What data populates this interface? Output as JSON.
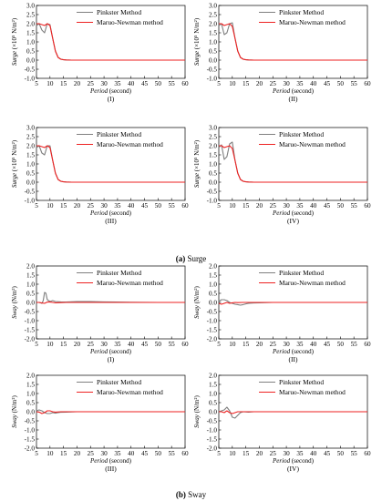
{
  "figure": {
    "caption_a_letter": "(a)",
    "caption_a_text": " Surge",
    "caption_b_letter": "(b)",
    "caption_b_text": " Sway",
    "colors": {
      "pinkster": "#7f7f7f",
      "maruo": "#ee2222"
    }
  },
  "chart_data": [
    {
      "type": "line",
      "group": "surge",
      "panel_label": "(I)",
      "xlabel_italic": "Period",
      "xlabel_unit": " (second)",
      "ylabel_italic": "Surge",
      "ylabel_unit": " (×10⁵ N/m²)",
      "xlim": [
        5,
        60
      ],
      "ylim": [
        -1.0,
        3.0
      ],
      "xticks": [
        5,
        10,
        15,
        20,
        25,
        30,
        35,
        40,
        45,
        50,
        55,
        60
      ],
      "yticks": [
        -1.0,
        -0.5,
        0.0,
        0.5,
        1.0,
        1.5,
        2.0,
        2.5,
        3.0
      ],
      "legend": "top-right",
      "series": [
        {
          "name": "Pinkster Method",
          "color": "#7f7f7f",
          "x": [
            5,
            6,
            7,
            8,
            9,
            10,
            11,
            12,
            13,
            14,
            15,
            16,
            18,
            20,
            30,
            40,
            50,
            60
          ],
          "y": [
            1.9,
            2.0,
            1.65,
            1.5,
            2.0,
            1.95,
            1.2,
            0.5,
            0.15,
            0.05,
            0.02,
            0.01,
            0,
            0,
            0,
            0,
            0,
            0
          ]
        },
        {
          "name": "Maruo-Newman method",
          "color": "#ee2222",
          "x": [
            5,
            6,
            7,
            8,
            9,
            10,
            11,
            12,
            13,
            14,
            15,
            16,
            18,
            20,
            30,
            40,
            50,
            60
          ],
          "y": [
            2.0,
            2.0,
            1.95,
            1.9,
            2.0,
            1.9,
            1.2,
            0.5,
            0.15,
            0.05,
            0.02,
            0.01,
            0,
            0,
            0,
            0,
            0,
            0
          ]
        }
      ]
    },
    {
      "type": "line",
      "group": "surge",
      "panel_label": "(II)",
      "xlabel_italic": "Period",
      "xlabel_unit": " (second)",
      "ylabel_italic": "Surge",
      "ylabel_unit": " (×10⁵ N/m²)",
      "xlim": [
        5,
        60
      ],
      "ylim": [
        -1.0,
        3.0
      ],
      "xticks": [
        5,
        10,
        15,
        20,
        25,
        30,
        35,
        40,
        45,
        50,
        55,
        60
      ],
      "yticks": [
        -1.0,
        -0.5,
        0.0,
        0.5,
        1.0,
        1.5,
        2.0,
        2.5,
        3.0
      ],
      "legend": "top-right",
      "series": [
        {
          "name": "Pinkster Method",
          "color": "#7f7f7f",
          "x": [
            5,
            6,
            7,
            8,
            9,
            10,
            11,
            12,
            13,
            14,
            15,
            16,
            18,
            20,
            30,
            40,
            50,
            60
          ],
          "y": [
            1.9,
            2.0,
            1.4,
            1.5,
            2.0,
            2.05,
            1.2,
            0.5,
            0.15,
            0.05,
            0.02,
            0.01,
            0,
            0,
            0,
            0,
            0,
            0
          ]
        },
        {
          "name": "Maruo-Newman method",
          "color": "#ee2222",
          "x": [
            5,
            6,
            7,
            8,
            9,
            10,
            11,
            12,
            13,
            14,
            15,
            16,
            18,
            20,
            30,
            40,
            50,
            60
          ],
          "y": [
            2.0,
            2.0,
            1.9,
            1.95,
            2.0,
            1.85,
            1.2,
            0.5,
            0.15,
            0.05,
            0.02,
            0.01,
            0,
            0,
            0,
            0,
            0,
            0
          ]
        }
      ]
    },
    {
      "type": "line",
      "group": "surge",
      "panel_label": "(III)",
      "xlabel_italic": "Period",
      "xlabel_unit": " (second)",
      "ylabel_italic": "Surge",
      "ylabel_unit": " (×10⁵ N/m²)",
      "xlim": [
        5,
        60
      ],
      "ylim": [
        -1.0,
        3.0
      ],
      "xticks": [
        5,
        10,
        15,
        20,
        25,
        30,
        35,
        40,
        45,
        50,
        55,
        60
      ],
      "yticks": [
        -1.0,
        -0.5,
        0.0,
        0.5,
        1.0,
        1.5,
        2.0,
        2.5,
        3.0
      ],
      "legend": "top-right",
      "series": [
        {
          "name": "Pinkster Method",
          "color": "#7f7f7f",
          "x": [
            5,
            6,
            7,
            8,
            9,
            10,
            11,
            12,
            13,
            14,
            15,
            16,
            18,
            20,
            30,
            40,
            50,
            60
          ],
          "y": [
            1.9,
            2.0,
            1.6,
            1.5,
            2.0,
            2.0,
            1.2,
            0.5,
            0.15,
            0.05,
            0.02,
            0.01,
            0,
            0,
            0,
            0,
            0,
            0
          ]
        },
        {
          "name": "Maruo-Newman method",
          "color": "#ee2222",
          "x": [
            5,
            6,
            7,
            8,
            9,
            10,
            11,
            12,
            13,
            14,
            15,
            16,
            18,
            20,
            30,
            40,
            50,
            60
          ],
          "y": [
            2.0,
            2.0,
            1.95,
            1.9,
            2.0,
            1.9,
            1.2,
            0.5,
            0.15,
            0.05,
            0.02,
            0.01,
            0,
            0,
            0,
            0,
            0,
            0
          ]
        }
      ]
    },
    {
      "type": "line",
      "group": "surge",
      "panel_label": "(IV)",
      "xlabel_italic": "Period",
      "xlabel_unit": " (second)",
      "ylabel_italic": "Surge",
      "ylabel_unit": " (×10⁵ N/m²)",
      "xlim": [
        5,
        60
      ],
      "ylim": [
        -1.0,
        3.0
      ],
      "xticks": [
        5,
        10,
        15,
        20,
        25,
        30,
        35,
        40,
        45,
        50,
        55,
        60
      ],
      "yticks": [
        -1.0,
        -0.5,
        0.0,
        0.5,
        1.0,
        1.5,
        2.0,
        2.5,
        3.0
      ],
      "legend": "top-right",
      "series": [
        {
          "name": "Pinkster Method",
          "color": "#7f7f7f",
          "x": [
            5,
            6,
            7,
            8,
            9,
            10,
            11,
            12,
            13,
            14,
            15,
            16,
            18,
            20,
            30,
            40,
            50,
            60
          ],
          "y": [
            1.9,
            2.05,
            1.25,
            1.4,
            2.1,
            2.2,
            1.2,
            0.5,
            0.15,
            0.05,
            0.02,
            0.01,
            0,
            0,
            0,
            0,
            0,
            0
          ]
        },
        {
          "name": "Maruo-Newman method",
          "color": "#ee2222",
          "x": [
            5,
            6,
            7,
            8,
            9,
            10,
            11,
            12,
            13,
            14,
            15,
            16,
            18,
            20,
            30,
            40,
            50,
            60
          ],
          "y": [
            2.0,
            2.0,
            1.9,
            1.95,
            2.0,
            1.85,
            1.2,
            0.5,
            0.15,
            0.05,
            0.02,
            0.01,
            0,
            0,
            0,
            0,
            0,
            0
          ]
        }
      ]
    },
    {
      "type": "line",
      "group": "sway",
      "panel_label": "(I)",
      "xlabel_italic": "Period",
      "xlabel_unit": " (second)",
      "ylabel_italic": "Sway",
      "ylabel_unit": " (N/m²)",
      "xlim": [
        5,
        60
      ],
      "ylim": [
        -2.0,
        2.0
      ],
      "xticks": [
        5,
        10,
        15,
        20,
        25,
        30,
        35,
        40,
        45,
        50,
        55,
        60
      ],
      "yticks": [
        -2.0,
        -1.5,
        -1.0,
        -0.5,
        0.0,
        0.5,
        1.0,
        1.5,
        2.0
      ],
      "legend": "top-right",
      "series": [
        {
          "name": "Pinkster Method",
          "color": "#7f7f7f",
          "x": [
            5,
            6,
            7,
            7.5,
            8,
            8.5,
            9,
            10,
            11,
            12,
            14,
            16,
            20,
            25,
            30,
            40,
            50,
            60
          ],
          "y": [
            0,
            0,
            -0.05,
            0.1,
            0.55,
            0.5,
            0.15,
            0.05,
            0.1,
            0.05,
            0.03,
            0.02,
            0.05,
            0.05,
            0.03,
            0.01,
            0,
            0
          ]
        },
        {
          "name": "Maruo-Newman method",
          "color": "#ee2222",
          "x": [
            5,
            6,
            7,
            8,
            9,
            10,
            11,
            12,
            14,
            16,
            20,
            25,
            30,
            40,
            50,
            60
          ],
          "y": [
            0,
            0,
            -0.03,
            -0.05,
            0.02,
            0.02,
            0.0,
            -0.02,
            -0.01,
            0,
            0,
            0,
            0,
            0,
            0,
            0
          ]
        }
      ]
    },
    {
      "type": "line",
      "group": "sway",
      "panel_label": "(II)",
      "xlabel_italic": "Period",
      "xlabel_unit": " (second)",
      "ylabel_italic": "Sway",
      "ylabel_unit": " (N/m²)",
      "xlim": [
        5,
        60
      ],
      "ylim": [
        -2.0,
        2.0
      ],
      "xticks": [
        5,
        10,
        15,
        20,
        25,
        30,
        35,
        40,
        45,
        50,
        55,
        60
      ],
      "yticks": [
        -2.0,
        -1.5,
        -1.0,
        -0.5,
        0.0,
        0.5,
        1.0,
        1.5,
        2.0
      ],
      "legend": "top-right",
      "series": [
        {
          "name": "Pinkster Method",
          "color": "#7f7f7f",
          "x": [
            5,
            6,
            7,
            8,
            9,
            10,
            11,
            12,
            13,
            14,
            15,
            16,
            18,
            20,
            25,
            30,
            40,
            50,
            60
          ],
          "y": [
            0.05,
            0.15,
            0.15,
            0.1,
            0.0,
            -0.05,
            -0.1,
            -0.12,
            -0.15,
            -0.12,
            -0.08,
            -0.05,
            -0.03,
            -0.02,
            0,
            0,
            0,
            0,
            0
          ]
        },
        {
          "name": "Maruo-Newman method",
          "color": "#ee2222",
          "x": [
            5,
            6,
            7,
            8,
            9,
            10,
            11,
            12,
            14,
            16,
            20,
            25,
            30,
            40,
            50,
            60
          ],
          "y": [
            -0.05,
            -0.1,
            -0.05,
            0.0,
            -0.05,
            -0.02,
            0.0,
            -0.01,
            0,
            0,
            0,
            0,
            0,
            0,
            0,
            0
          ]
        }
      ]
    },
    {
      "type": "line",
      "group": "sway",
      "panel_label": "(III)",
      "xlabel_italic": "Period",
      "xlabel_unit": " (second)",
      "ylabel_italic": "Sway",
      "ylabel_unit": " (N/m²)",
      "xlim": [
        5,
        60
      ],
      "ylim": [
        -2.0,
        2.0
      ],
      "xticks": [
        5,
        10,
        15,
        20,
        25,
        30,
        35,
        40,
        45,
        50,
        55,
        60
      ],
      "yticks": [
        -2.0,
        -1.5,
        -1.0,
        -0.5,
        0.0,
        0.5,
        1.0,
        1.5,
        2.0
      ],
      "legend": "top-right",
      "series": [
        {
          "name": "Pinkster Method",
          "color": "#7f7f7f",
          "x": [
            5,
            6,
            7,
            8,
            9,
            10,
            11,
            12,
            13,
            14,
            16,
            18,
            20,
            25,
            30,
            40,
            50,
            60
          ],
          "y": [
            0.05,
            0.1,
            0.05,
            -0.05,
            -0.1,
            -0.1,
            -0.05,
            -0.08,
            -0.05,
            -0.03,
            -0.02,
            -0.01,
            0,
            0,
            0,
            0,
            0,
            0
          ]
        },
        {
          "name": "Maruo-Newman method",
          "color": "#ee2222",
          "x": [
            5,
            6,
            7,
            8,
            9,
            10,
            11,
            12,
            14,
            16,
            20,
            25,
            30,
            40,
            50,
            60
          ],
          "y": [
            0,
            -0.02,
            -0.1,
            -0.05,
            0.05,
            0.05,
            0.0,
            -0.02,
            0,
            0,
            0,
            0,
            0,
            0,
            0,
            0
          ]
        }
      ]
    },
    {
      "type": "line",
      "group": "sway",
      "panel_label": "(IV)",
      "xlabel_italic": "Period",
      "xlabel_unit": " (second)",
      "ylabel_italic": "Sway",
      "ylabel_unit": " (N/m²)",
      "xlim": [
        5,
        60
      ],
      "ylim": [
        -2.0,
        2.0
      ],
      "xticks": [
        5,
        10,
        15,
        20,
        25,
        30,
        35,
        40,
        45,
        50,
        55,
        60
      ],
      "yticks": [
        -2.0,
        -1.5,
        -1.0,
        -0.5,
        0.0,
        0.5,
        1.0,
        1.5,
        2.0
      ],
      "legend": "top-right",
      "series": [
        {
          "name": "Pinkster Method",
          "color": "#7f7f7f",
          "x": [
            5,
            6,
            7,
            8,
            9,
            10,
            11,
            12,
            13,
            14,
            16,
            18,
            20,
            25,
            30,
            40,
            50,
            60
          ],
          "y": [
            0,
            0.05,
            0.1,
            0.25,
            0.05,
            -0.3,
            -0.35,
            -0.2,
            -0.05,
            0.0,
            -0.02,
            0,
            0,
            0,
            0,
            0,
            0,
            0
          ]
        },
        {
          "name": "Maruo-Newman method",
          "color": "#ee2222",
          "x": [
            5,
            6,
            7,
            8,
            9,
            10,
            11,
            12,
            14,
            16,
            20,
            25,
            30,
            40,
            50,
            60
          ],
          "y": [
            0,
            0.0,
            -0.05,
            0.05,
            -0.05,
            -0.1,
            -0.05,
            0.0,
            0,
            0,
            0,
            0,
            0,
            0,
            0,
            0
          ]
        }
      ]
    }
  ]
}
